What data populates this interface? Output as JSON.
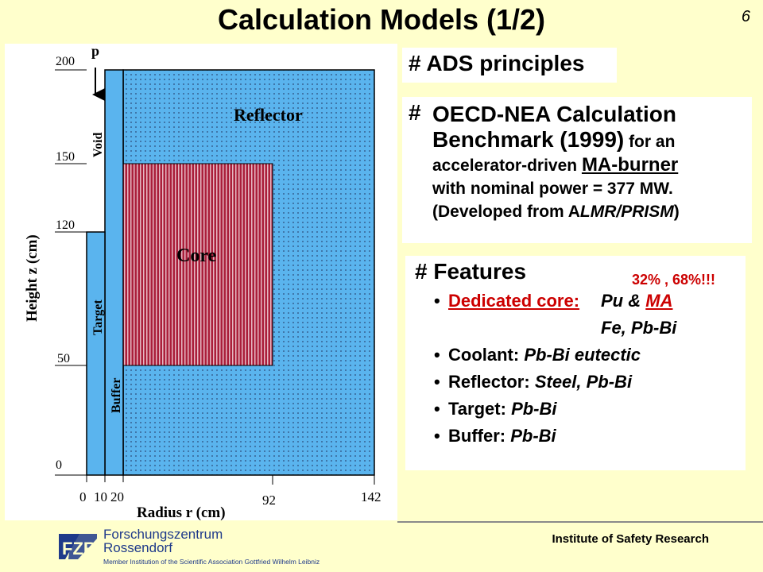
{
  "slide": {
    "title": "Calculation Models (1/2)",
    "page_number": "6"
  },
  "diagram": {
    "y_axis_label": "Height z (cm)",
    "x_axis_label": "Radius r  (cm)",
    "y_ticks": [
      "200",
      "150",
      "120",
      "50",
      "0"
    ],
    "x_ticks": [
      "0",
      "10",
      "20",
      "92",
      "142"
    ],
    "regions": {
      "reflector": "Reflector",
      "core": "Core",
      "void": "Void",
      "target": "Target",
      "buffer": "Buffer",
      "beam": "p"
    },
    "colors": {
      "blue": "#5ab4ee",
      "core_red": "#aa1e3a",
      "dot": "#2c4a78"
    }
  },
  "ads": {
    "heading": "# ADS principles"
  },
  "oecd": {
    "hash": "#",
    "line1": "OECD-NEA Calculation",
    "line2_big": "Benchmark (1999)",
    "line2_small": " for an",
    "line3_prefix": "accelerator-driven ",
    "line3_link": "MA-burner",
    "line4": "with nominal power = 377 MW.",
    "line5_prefix": "(Developed from A",
    "line5_italic": "LMR/PRISM",
    "line5_suffix": ")"
  },
  "features": {
    "heading": "# Features",
    "pct_note": "32% ,  68%!!!",
    "items": [
      {
        "label": "Dedicated core:",
        "value": "Pu & MA"
      },
      {
        "label": "Coolant:",
        "value": "Pb-Bi eutectic"
      },
      {
        "label": "Reflector:",
        "value": "Steel, Pb-Bi"
      },
      {
        "label": "Target:",
        "value": "Pb-Bi"
      },
      {
        "label": "Buffer:",
        "value": "Pb-Bi"
      }
    ],
    "core_val_1": "Pu",
    "core_val_amp": "&",
    "core_val_2": "MA",
    "core_val_line2": "Fe, Pb-Bi"
  },
  "footer": {
    "institution_line1": "Forschungszentrum",
    "institution_line2": "Rossendorf",
    "member_text": "Member Institution of the Scientific Association Gottfried Wilhelm Leibniz",
    "research": "Institute of Safety Research",
    "logo_text": "FZR"
  }
}
